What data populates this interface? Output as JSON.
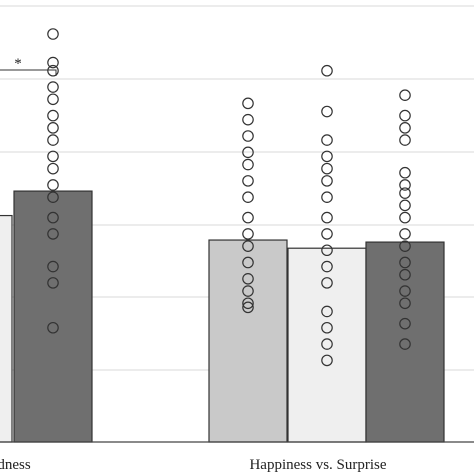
{
  "chart_data": {
    "type": "bar",
    "categories": [
      "dness",
      "Happiness vs. Surprise"
    ],
    "ylim": [
      0,
      1
    ],
    "grid": true,
    "legend": "none",
    "colors": {
      "light_gray": "#c9c9c9",
      "very_light": "#efefef",
      "dark_gray": "#6f6f6f",
      "edge": "#333333",
      "grid": "#d9d9d9",
      "axis": "#444444"
    },
    "series": [
      {
        "fill": "light_gray",
        "values": [
          null,
          0.495
        ],
        "points": [
          [],
          [
            0.83,
            0.79,
            0.75,
            0.71,
            0.68,
            0.64,
            0.6,
            0.55,
            0.51,
            0.48,
            0.44,
            0.4,
            0.37,
            0.34,
            0.33
          ]
        ]
      },
      {
        "fill": "very_light",
        "values": [
          0.555,
          0.475
        ],
        "points": [
          [],
          [
            0.91,
            0.81,
            0.74,
            0.7,
            0.67,
            0.64,
            0.6,
            0.55,
            0.51,
            0.47,
            0.43,
            0.39,
            0.32,
            0.28,
            0.24,
            0.2
          ]
        ]
      },
      {
        "fill": "dark_gray",
        "values": [
          0.615,
          0.49
        ],
        "points": [
          [
            1.0,
            0.93,
            0.91,
            0.87,
            0.84,
            0.8,
            0.77,
            0.74,
            0.7,
            0.67,
            0.63,
            0.6,
            0.55,
            0.51,
            0.43,
            0.39,
            0.28
          ],
          [
            0.85,
            0.8,
            0.77,
            0.74,
            0.66,
            0.63,
            0.61,
            0.58,
            0.55,
            0.51,
            0.48,
            0.44,
            0.41,
            0.37,
            0.34,
            0.29,
            0.24
          ]
        ]
      }
    ],
    "significance": [
      {
        "category": 0,
        "label": "*"
      }
    ]
  }
}
